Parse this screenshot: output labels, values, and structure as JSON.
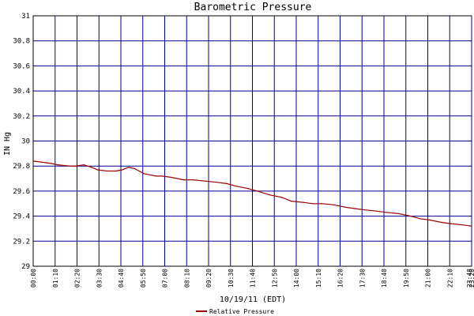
{
  "chart_data": {
    "type": "line",
    "title": "Barometric Pressure",
    "ylabel": "IN Hg",
    "xlabel": "10/19/11 (EDT)",
    "ylim": [
      29,
      31
    ],
    "y_ticks": [
      "29",
      "29.2",
      "29.4",
      "29.6",
      "29.8",
      "30",
      "30.2",
      "30.4",
      "30.6",
      "30.8",
      "31"
    ],
    "x_ticks": [
      "00:00",
      "01:10",
      "02:20",
      "03:30",
      "04:40",
      "05:50",
      "07:00",
      "08:10",
      "09:20",
      "10:30",
      "11:40",
      "12:50",
      "14:00",
      "15:10",
      "16:20",
      "17:30",
      "18:40",
      "19:50",
      "21:00",
      "22:10",
      "23:20",
      "23:48"
    ],
    "grid": true,
    "legend_position": "bottom",
    "series": [
      {
        "name": "Relative Pressure",
        "color": "#990000",
        "x_hours": [
          0.0,
          0.5,
          1.0,
          1.33,
          2.0,
          2.33,
          2.75,
          3.17,
          3.5,
          4.0,
          4.5,
          4.83,
          5.17,
          5.5,
          6.0,
          6.67,
          7.0,
          7.5,
          8.17,
          8.67,
          9.33,
          10.0,
          10.5,
          11.0,
          11.67,
          12.17,
          12.83,
          13.5,
          14.0,
          14.67,
          15.17,
          15.67,
          16.33,
          17.0,
          17.5,
          18.0,
          18.67,
          19.17,
          19.83,
          20.5,
          21.0,
          21.5,
          22.17,
          22.67,
          23.33,
          23.8
        ],
        "values": [
          29.84,
          29.83,
          29.82,
          29.81,
          29.8,
          29.8,
          29.81,
          29.79,
          29.77,
          29.76,
          29.76,
          29.77,
          29.79,
          29.78,
          29.74,
          29.72,
          29.72,
          29.71,
          29.69,
          29.69,
          29.68,
          29.67,
          29.66,
          29.64,
          29.62,
          29.6,
          29.57,
          29.55,
          29.52,
          29.51,
          29.5,
          29.5,
          29.49,
          29.47,
          29.46,
          29.45,
          29.44,
          29.43,
          29.42,
          29.4,
          29.38,
          29.37,
          29.35,
          29.34,
          29.33,
          29.32
        ]
      }
    ]
  }
}
